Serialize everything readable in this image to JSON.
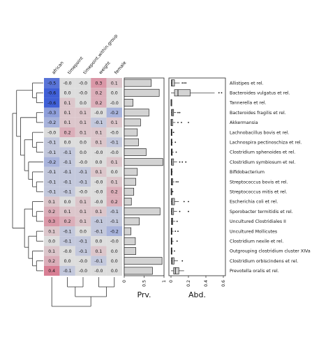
{
  "chart_data": [
    {
      "type": "heatmap",
      "columns": [
        "african",
        "timepoint",
        "timepoint.within.group",
        "weight",
        "female"
      ],
      "rows": [
        "Allistipes et rel.",
        "Bacteroides vulgatus et rel.",
        "Tannerella et rel.",
        "Bacteroides fragilis et rel.",
        "Akkermansia",
        "Lachnobacillus bovis et rel.",
        "Lachnospira pectinoschiza et rel.",
        "Clostridium sphenoides et rel.",
        "Clostridium symbiosum et rel.",
        "Bifidobacterium",
        "Streptococcus bovis et rel.",
        "Streptococcus mitis et rel.",
        "Escherichia coli et rel.",
        "Sporobacter termitidis et rel.",
        "Uncultured Clostridiales II",
        "Uncultured Mollicutes",
        "Clostridium nexile et rel.",
        "Outgrouping clostridium cluster XIVa",
        "Clostridium orbiscindens et rel.",
        "Prevotella oralis et rel."
      ],
      "values": [
        [
          -0.5,
          -0.0,
          -0.0,
          0.3,
          0.1
        ],
        [
          -0.6,
          0.0,
          -0.0,
          0.2,
          0.0
        ],
        [
          -0.6,
          0.1,
          0.0,
          0.2,
          -0.0
        ],
        [
          -0.3,
          0.1,
          0.1,
          -0.0,
          -0.2
        ],
        [
          -0.2,
          0.1,
          0.1,
          -0.1,
          0.1
        ],
        [
          -0.0,
          0.2,
          0.1,
          0.1,
          -0.0
        ],
        [
          -0.1,
          0.0,
          0.0,
          0.1,
          -0.1
        ],
        [
          -0.1,
          -0.1,
          0.0,
          -0.0,
          -0.0
        ],
        [
          -0.2,
          -0.1,
          -0.0,
          0.0,
          0.1
        ],
        [
          -0.1,
          -0.1,
          -0.1,
          0.1,
          0.0
        ],
        [
          -0.1,
          -0.1,
          -0.1,
          -0.0,
          0.1
        ],
        [
          -0.1,
          -0.1,
          -0.0,
          -0.0,
          0.2
        ],
        [
          0.1,
          0.0,
          0.1,
          -0.0,
          0.2
        ],
        [
          0.2,
          0.1,
          0.1,
          0.1,
          -0.1
        ],
        [
          0.3,
          0.2,
          0.1,
          -0.1,
          -0.1
        ],
        [
          0.1,
          -0.1,
          0.0,
          -0.1,
          -0.2
        ],
        [
          0.0,
          -0.1,
          -0.1,
          0.0,
          -0.0
        ],
        [
          0.1,
          -0.0,
          -0.1,
          0.1,
          0.0
        ],
        [
          0.2,
          0.0,
          -0.0,
          -0.1,
          0.0
        ],
        [
          0.4,
          -0.1,
          -0.0,
          -0.0,
          0.0
        ]
      ],
      "color_range": [
        -0.6,
        0.6
      ],
      "colors": {
        "negative": "#3f5fd6",
        "neutral": "#dddddd",
        "positive": "#d65070"
      }
    },
    {
      "type": "bar",
      "xlabel": "Prv.",
      "xlim": [
        0,
        1
      ],
      "xticks": [
        "0",
        "0.5",
        "1"
      ],
      "categories_ref": "rows",
      "values": [
        0.68,
        0.88,
        0.22,
        0.62,
        0.41,
        0.33,
        0.36,
        0.55,
        0.97,
        0.33,
        0.29,
        0.24,
        0.18,
        0.9,
        0.38,
        0.17,
        0.28,
        0.29,
        0.95,
        0.71
      ],
      "bar_color": "#d3d3d3"
    },
    {
      "type": "boxplot",
      "xlabel": "Abd.",
      "xlim": [
        0,
        0.6
      ],
      "xticks": [
        "0",
        "0.2",
        "0.4",
        "0.6"
      ],
      "boxes": [
        {
          "min": 0.0,
          "q1": 0.005,
          "median": 0.01,
          "q3": 0.04,
          "max": 0.1,
          "outliers": [
            0.13,
            0.15,
            0.17
          ]
        },
        {
          "min": 0.0,
          "q1": 0.04,
          "median": 0.08,
          "q3": 0.22,
          "max": 0.5,
          "outliers": [
            0.55,
            0.58
          ]
        },
        {
          "min": 0.0,
          "q1": 0.0,
          "median": 0.002,
          "q3": 0.005,
          "max": 0.01,
          "outliers": []
        },
        {
          "min": 0.0,
          "q1": 0.005,
          "median": 0.015,
          "q3": 0.03,
          "max": 0.06,
          "outliers": [
            0.08,
            0.1
          ]
        },
        {
          "min": 0.0,
          "q1": 0.0,
          "median": 0.005,
          "q3": 0.02,
          "max": 0.05,
          "outliers": [
            0.08,
            0.12,
            0.2
          ]
        },
        {
          "min": 0.0,
          "q1": 0.002,
          "median": 0.005,
          "q3": 0.01,
          "max": 0.02,
          "outliers": [
            0.03
          ]
        },
        {
          "min": 0.0,
          "q1": 0.002,
          "median": 0.005,
          "q3": 0.01,
          "max": 0.02,
          "outliers": [
            0.05
          ]
        },
        {
          "min": 0.0,
          "q1": 0.003,
          "median": 0.007,
          "q3": 0.015,
          "max": 0.03,
          "outliers": [
            0.06
          ]
        },
        {
          "min": 0.0,
          "q1": 0.005,
          "median": 0.01,
          "q3": 0.03,
          "max": 0.07,
          "outliers": [
            0.1,
            0.13,
            0.17
          ]
        },
        {
          "min": 0.0,
          "q1": 0.002,
          "median": 0.005,
          "q3": 0.01,
          "max": 0.02,
          "outliers": []
        },
        {
          "min": 0.0,
          "q1": 0.003,
          "median": 0.008,
          "q3": 0.02,
          "max": 0.04,
          "outliers": [
            0.06,
            0.08
          ]
        },
        {
          "min": 0.0,
          "q1": 0.001,
          "median": 0.003,
          "q3": 0.007,
          "max": 0.015,
          "outliers": [
            0.02
          ]
        },
        {
          "min": 0.0,
          "q1": 0.005,
          "median": 0.015,
          "q3": 0.04,
          "max": 0.09,
          "outliers": [
            0.15,
            0.2
          ]
        },
        {
          "min": 0.0,
          "q1": 0.005,
          "median": 0.01,
          "q3": 0.03,
          "max": 0.07,
          "outliers": [
            0.1,
            0.2
          ]
        },
        {
          "min": 0.0,
          "q1": 0.005,
          "median": 0.01,
          "q3": 0.02,
          "max": 0.05,
          "outliers": [
            0.07
          ]
        },
        {
          "min": 0.0,
          "q1": 0.002,
          "median": 0.005,
          "q3": 0.01,
          "max": 0.03,
          "outliers": [
            0.05,
            0.08
          ]
        },
        {
          "min": 0.0,
          "q1": 0.002,
          "median": 0.005,
          "q3": 0.01,
          "max": 0.03,
          "outliers": [
            0.07
          ]
        },
        {
          "min": 0.0,
          "q1": 0.002,
          "median": 0.004,
          "q3": 0.008,
          "max": 0.02,
          "outliers": [
            0.04
          ]
        },
        {
          "min": 0.0,
          "q1": 0.005,
          "median": 0.015,
          "q3": 0.035,
          "max": 0.08,
          "outliers": [
            0.13
          ]
        },
        {
          "min": 0.0,
          "q1": 0.03,
          "median": 0.05,
          "q3": 0.09,
          "max": 0.15,
          "outliers": []
        }
      ]
    }
  ]
}
